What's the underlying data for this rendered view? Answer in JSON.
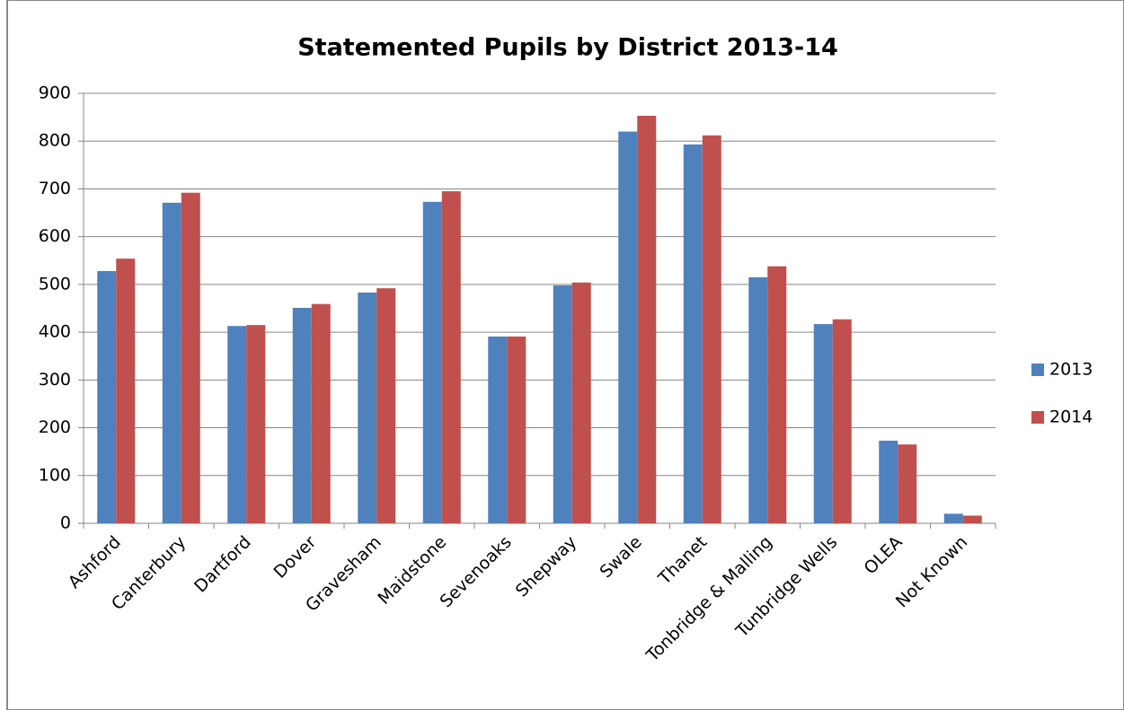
{
  "chart_data": {
    "type": "bar",
    "title": "Statemented Pupils by District 2013-14",
    "categories": [
      "Ashford",
      "Canterbury",
      "Dartford",
      "Dover",
      "Gravesham",
      "Maidstone",
      "Sevenoaks",
      "Shepway",
      "Swale",
      "Thanet",
      "Tonbridge & Malling",
      "Tunbridge Wells",
      "OLEA",
      "Not Known"
    ],
    "series": [
      {
        "name": "2013",
        "color": "#4f81bd",
        "values": [
          528,
          671,
          413,
          451,
          483,
          673,
          391,
          498,
          820,
          793,
          515,
          417,
          173,
          20
        ]
      },
      {
        "name": "2014",
        "color": "#c0504d",
        "values": [
          554,
          692,
          415,
          459,
          492,
          695,
          391,
          504,
          853,
          812,
          538,
          427,
          165,
          16
        ]
      }
    ],
    "ylim": [
      0,
      900
    ],
    "yticks": [
      0,
      100,
      200,
      300,
      400,
      500,
      600,
      700,
      800,
      900
    ],
    "grid": true,
    "legend": "right"
  }
}
